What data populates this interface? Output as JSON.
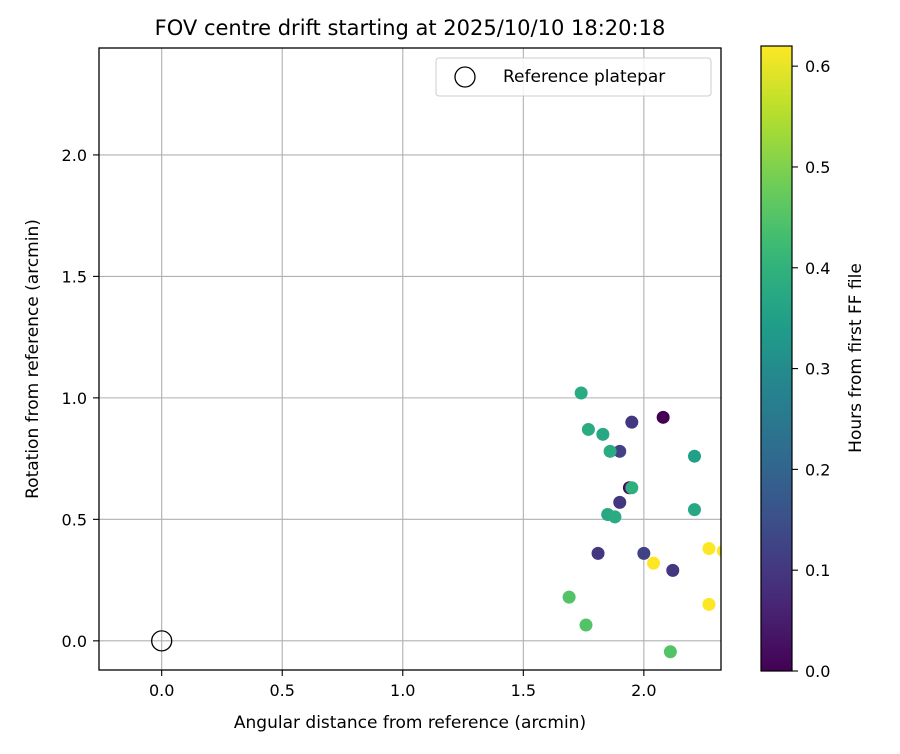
{
  "chart_data": {
    "type": "scatter",
    "title": "FOV centre drift starting at 2025/10/10 18:20:18",
    "xlabel": "Angular distance from reference (arcmin)",
    "ylabel": "Rotation from reference (arcmin)",
    "xlim": [
      -0.26,
      2.32
    ],
    "ylim": [
      -0.12,
      2.44
    ],
    "xticks": [
      0.0,
      0.5,
      1.0,
      1.5,
      2.0
    ],
    "xtick_labels": [
      "0.0",
      "0.5",
      "1.0",
      "1.5",
      "2.0"
    ],
    "yticks": [
      0.0,
      0.5,
      1.0,
      1.5,
      2.0
    ],
    "ytick_labels": [
      "0.0",
      "0.5",
      "1.0",
      "1.5",
      "2.0"
    ],
    "grid": true,
    "legend": {
      "placement": "top-right",
      "entries": [
        {
          "label": "Reference platepar",
          "marker": "hollow-circle",
          "color": "#000000"
        }
      ]
    },
    "reference_point": {
      "x": 0.0,
      "y": 0.0
    },
    "colorbar": {
      "label": "Hours from first FF file",
      "colormap": "viridis",
      "range": [
        0.0,
        0.62
      ],
      "ticks": [
        0.0,
        0.1,
        0.2,
        0.3,
        0.4,
        0.5,
        0.6
      ],
      "tick_labels": [
        "0.0",
        "0.1",
        "0.2",
        "0.3",
        "0.4",
        "0.5",
        "0.6"
      ]
    },
    "points": [
      {
        "x": 2.08,
        "y": 0.92,
        "hours": 0.0
      },
      {
        "x": 1.94,
        "y": 0.63,
        "hours": 0.02
      },
      {
        "x": 1.95,
        "y": 0.9,
        "hours": 0.1
      },
      {
        "x": 1.9,
        "y": 0.78,
        "hours": 0.12
      },
      {
        "x": 1.9,
        "y": 0.57,
        "hours": 0.1
      },
      {
        "x": 1.81,
        "y": 0.36,
        "hours": 0.1
      },
      {
        "x": 2.0,
        "y": 0.36,
        "hours": 0.12
      },
      {
        "x": 2.12,
        "y": 0.29,
        "hours": 0.1
      },
      {
        "x": 1.74,
        "y": 1.02,
        "hours": 0.38
      },
      {
        "x": 1.77,
        "y": 0.87,
        "hours": 0.38
      },
      {
        "x": 1.83,
        "y": 0.85,
        "hours": 0.37
      },
      {
        "x": 1.86,
        "y": 0.78,
        "hours": 0.38
      },
      {
        "x": 2.21,
        "y": 0.76,
        "hours": 0.35
      },
      {
        "x": 1.95,
        "y": 0.63,
        "hours": 0.39
      },
      {
        "x": 2.21,
        "y": 0.54,
        "hours": 0.37
      },
      {
        "x": 1.85,
        "y": 0.52,
        "hours": 0.37
      },
      {
        "x": 1.88,
        "y": 0.51,
        "hours": 0.38
      },
      {
        "x": 2.04,
        "y": 0.32,
        "hours": 0.62
      },
      {
        "x": 2.27,
        "y": 0.38,
        "hours": 0.62
      },
      {
        "x": 2.33,
        "y": 0.37,
        "hours": 0.62
      },
      {
        "x": 2.27,
        "y": 0.15,
        "hours": 0.62
      },
      {
        "x": 1.69,
        "y": 0.18,
        "hours": 0.45
      },
      {
        "x": 1.76,
        "y": 0.065,
        "hours": 0.45
      },
      {
        "x": 2.11,
        "y": -0.045,
        "hours": 0.45
      }
    ]
  }
}
